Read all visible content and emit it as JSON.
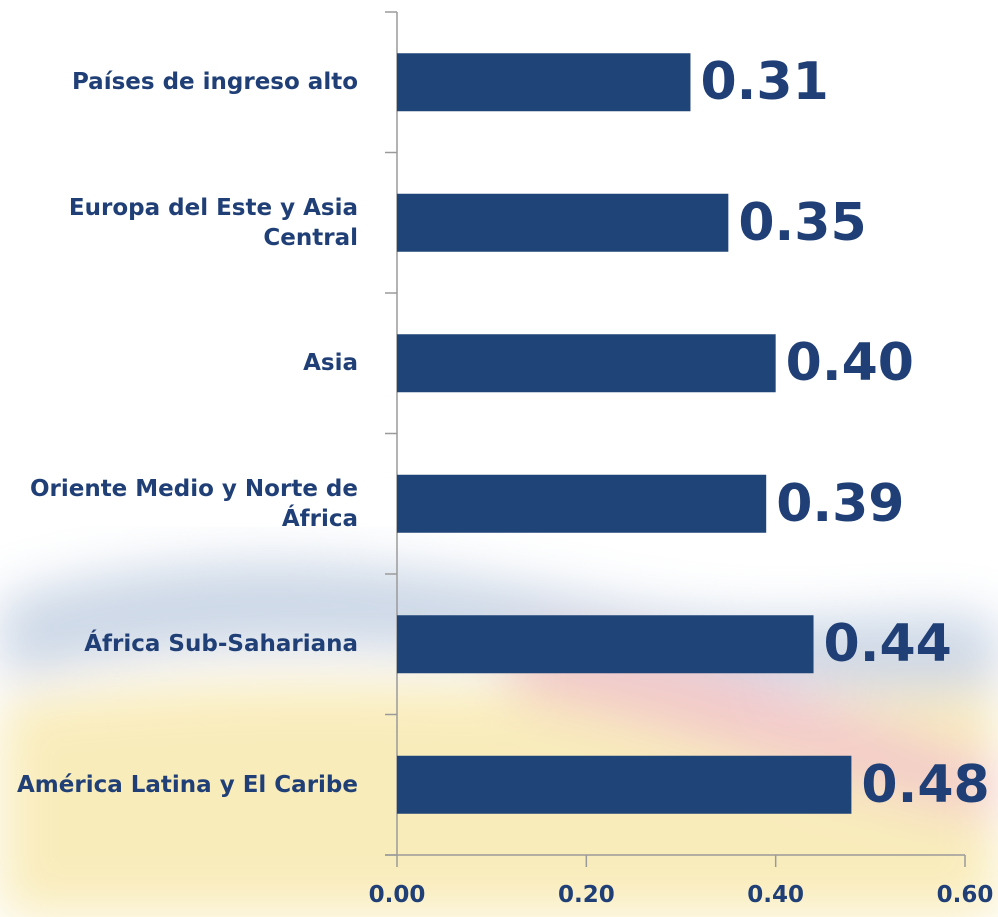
{
  "chart_data": {
    "type": "barh",
    "categories": [
      "Países de ingreso alto",
      "Europa del Este y Asia Central",
      "Asia",
      "Oriente Medio y Norte de África",
      "África Sub-Sahariana",
      "América Latina y El Caribe"
    ],
    "values": [
      0.31,
      0.35,
      0.4,
      0.39,
      0.44,
      0.48
    ],
    "value_labels": [
      "0.31",
      "0.35",
      "0.40",
      "0.39",
      "0.44",
      "0.48"
    ],
    "color": "#1f4477",
    "xlim": [
      0,
      0.6
    ],
    "xticks": [
      {
        "value": 0,
        "label": "0.00"
      },
      {
        "value": 0.2,
        "label": "0.20"
      },
      {
        "value": 0.4,
        "label": "0.40"
      },
      {
        "value": 0.6,
        "label": "0.60"
      }
    ]
  }
}
